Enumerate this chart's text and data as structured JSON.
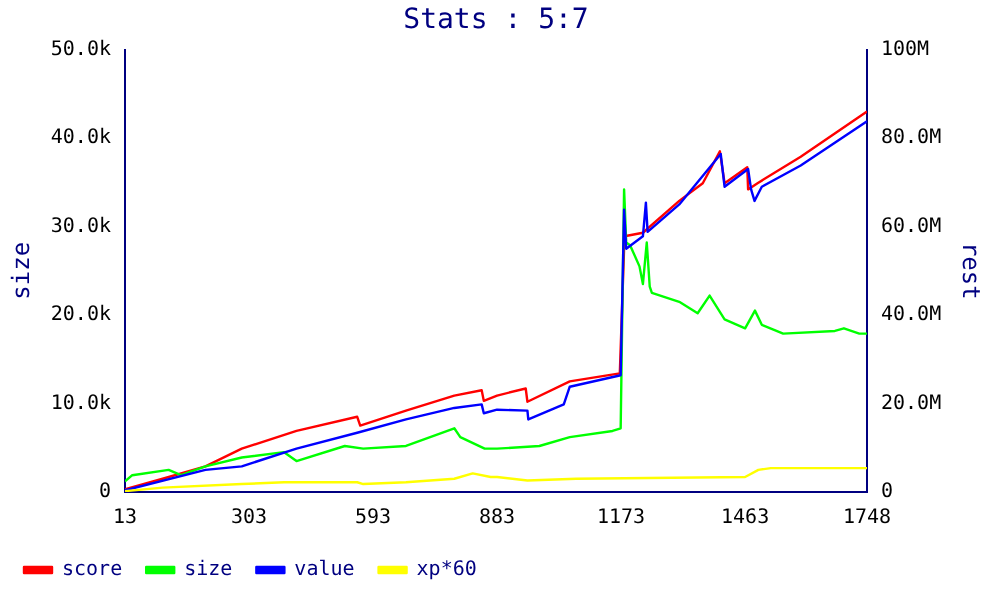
{
  "chart_data": {
    "type": "line",
    "title": "Stats : 5:7",
    "ylabel": "size",
    "y2label": "rest",
    "xlim": [
      13,
      1748
    ],
    "xticks": [
      13,
      303,
      593,
      883,
      1173,
      1463,
      1748
    ],
    "ylim": [
      0,
      50000
    ],
    "yticks": [
      0,
      {
        "value": 10000,
        "label": "10.0k"
      },
      {
        "value": 20000,
        "label": "20.0k"
      },
      {
        "value": 30000,
        "label": "30.0k"
      },
      {
        "value": 40000,
        "label": "40.0k"
      },
      {
        "value": 50000,
        "label": "50.0k"
      }
    ],
    "y2lim": [
      0,
      100000000
    ],
    "y2ticks": [
      0,
      {
        "value": 20000000,
        "label": "20.0M"
      },
      {
        "value": 40000000,
        "label": "40.0M"
      },
      {
        "value": 60000000,
        "label": "60.0M"
      },
      {
        "value": 80000000,
        "label": "80.0M"
      },
      {
        "value": 100000000,
        "label": "100M"
      }
    ],
    "grid": false,
    "legend": "bottom left",
    "marker": "none",
    "series": [
      {
        "name": "score",
        "color": "#ff0000",
        "axis": "y2",
        "x": [
          13,
          101,
          201,
          286,
          414,
          556,
          563,
          670,
          783,
          847,
          852,
          883,
          950,
          954,
          1053,
          1170,
          1181,
          1224,
          1309,
          1364,
          1404,
          1415,
          1468,
          1470,
          1492,
          1593,
          1748
        ],
        "values": [
          600000,
          3000000,
          5800000,
          9800000,
          13800000,
          17000000,
          15000000,
          18400000,
          21800000,
          23000000,
          20600000,
          21800000,
          23400000,
          20400000,
          25000000,
          26800000,
          57800000,
          58600000,
          65800000,
          69800000,
          77000000,
          69800000,
          73400000,
          68400000,
          69800000,
          75800000,
          86000000
        ]
      },
      {
        "name": "size",
        "color": "#00ff00",
        "axis": "y",
        "x": [
          13,
          30,
          115,
          144,
          201,
          286,
          385,
          414,
          527,
          570,
          670,
          783,
          797,
          854,
          883,
          982,
          1053,
          1153,
          1172,
          1180,
          1185,
          1194,
          1216,
          1224,
          1233,
          1240,
          1245,
          1309,
          1352,
          1380,
          1415,
          1463,
          1486,
          1502,
          1552,
          1673,
          1694,
          1730,
          1748
        ],
        "values": [
          1200,
          1900,
          2500,
          1900,
          2900,
          3900,
          4500,
          3500,
          5200,
          4900,
          5200,
          7200,
          6200,
          4900,
          4900,
          5200,
          6200,
          6900,
          7200,
          34200,
          28200,
          27900,
          25500,
          23500,
          28200,
          23200,
          22500,
          21500,
          20200,
          22200,
          19500,
          18500,
          20500,
          18900,
          17900,
          18200,
          18500,
          17900,
          17900
        ]
      },
      {
        "name": "value",
        "color": "#0000ff",
        "axis": "y2",
        "x": [
          13,
          201,
          286,
          414,
          556,
          670,
          783,
          847,
          852,
          883,
          954,
          956,
          1039,
          1053,
          1172,
          1180,
          1185,
          1224,
          1231,
          1235,
          1309,
          1406,
          1415,
          1470,
          1477,
          1485,
          1502,
          1593,
          1748
        ],
        "values": [
          400000,
          5000000,
          5800000,
          9800000,
          13400000,
          16400000,
          19000000,
          19800000,
          17800000,
          18600000,
          18400000,
          16400000,
          19800000,
          23800000,
          26400000,
          63800000,
          55000000,
          57800000,
          65400000,
          58800000,
          65000000,
          76400000,
          69000000,
          73000000,
          68400000,
          65800000,
          69000000,
          73800000,
          83800000
        ]
      },
      {
        "name": "xp*60",
        "color": "#ffff00",
        "axis": "y2",
        "x": [
          13,
          101,
          286,
          385,
          556,
          570,
          670,
          783,
          826,
          868,
          883,
          954,
          1068,
          1463,
          1494,
          1523,
          1748
        ],
        "values": [
          200000,
          1000000,
          1800000,
          2200000,
          2200000,
          1800000,
          2200000,
          3000000,
          4200000,
          3400000,
          3400000,
          2600000,
          3000000,
          3400000,
          5000000,
          5400000,
          5400000
        ]
      }
    ]
  }
}
